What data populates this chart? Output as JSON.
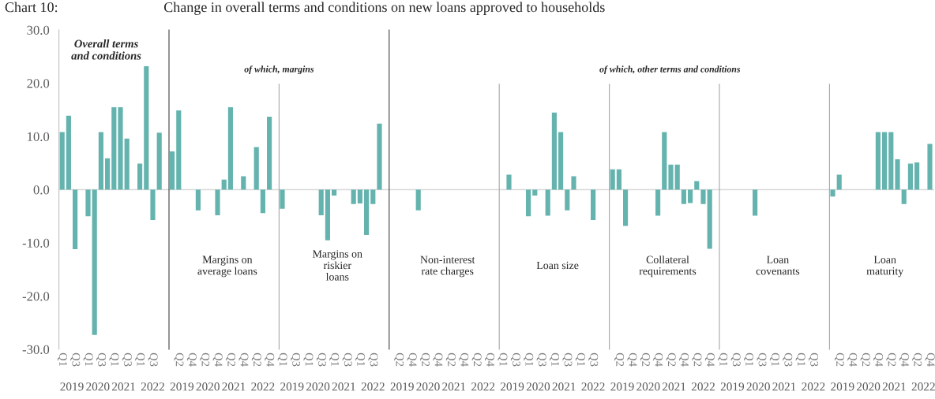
{
  "chart_data": [
    {
      "type": "bar",
      "title": "Overall terms\nand conditions",
      "categories": [
        "Q1",
        null,
        "Q3",
        null,
        "Q1",
        null,
        "Q3",
        null,
        "Q1",
        null,
        "Q3",
        null,
        "Q1",
        null,
        "Q3",
        null
      ],
      "values": [
        10.8,
        13.9,
        -11.2,
        null,
        -5.0,
        -27.3,
        10.8,
        5.9,
        15.5,
        15.5,
        9.6,
        null,
        4.9,
        23.2,
        -5.7,
        10.7
      ],
      "color": "#64b3ae",
      "ylim": [
        -30,
        30
      ],
      "yticks": [
        {
          "value": -30,
          "label": "-30.0"
        },
        {
          "value": -20,
          "label": "-20.0"
        },
        {
          "value": -10,
          "label": "-10.0"
        },
        {
          "value": 0,
          "label": "0.0"
        },
        {
          "value": 10,
          "label": "10.0"
        },
        {
          "value": 20,
          "label": "20.0"
        },
        {
          "value": 30,
          "label": "30.0"
        }
      ],
      "ref_lines": [
        {
          "axis": "y",
          "value": 0,
          "color": "#d9d9d9"
        }
      ],
      "annotations": [
        "Chart 10:",
        "Change in overall terms and conditions on new loans approved to households",
        "2019",
        "2020",
        "2021",
        "2022"
      ]
    },
    {
      "type": "bar",
      "title": "Margins on\naverage loans",
      "subtitle": "of which, margins",
      "categories": [
        null,
        "Q2",
        null,
        "Q4",
        null,
        "Q2",
        null,
        "Q4",
        null,
        "Q2",
        null,
        "Q4",
        null,
        "Q2",
        null,
        "Q4"
      ],
      "values": [
        7.2,
        14.9,
        null,
        null,
        -3.9,
        null,
        null,
        -4.8,
        1.9,
        15.5,
        null,
        2.5,
        null,
        8.0,
        -4.4,
        13.7
      ],
      "color": "#64b3ae",
      "ylim": [
        -30,
        30
      ],
      "tick_labels": "x",
      "ref_lines": [
        {
          "axis": "y",
          "value": 0,
          "color": "#d9d9d9"
        }
      ],
      "annotations": [
        "2019",
        "2020",
        "2021",
        "2022"
      ]
    },
    {
      "type": "bar",
      "title": "Margins on\nriskier\nloans",
      "categories": [
        "Q1",
        null,
        "Q3",
        null,
        "Q1",
        null,
        "Q3",
        null,
        "Q1",
        null,
        "Q3",
        null,
        "Q1",
        null,
        "Q3",
        null
      ],
      "values": [
        -3.6,
        null,
        null,
        null,
        null,
        null,
        -4.8,
        -9.5,
        -1.1,
        null,
        null,
        -2.7,
        -2.6,
        -8.5,
        -2.7,
        12.4
      ],
      "color": "#64b3ae",
      "ylim": [
        -30,
        30
      ],
      "tick_labels": "x",
      "ref_lines": [
        {
          "axis": "y",
          "value": 0,
          "color": "#d9d9d9"
        }
      ],
      "annotations": [
        "2019",
        "2020",
        "2021",
        "2022"
      ]
    },
    {
      "type": "bar",
      "title": "Non-interest\nrate charges",
      "categories": [
        null,
        "Q2",
        null,
        "Q4",
        null,
        "Q2",
        null,
        "Q4",
        null,
        "Q2",
        null,
        "Q4",
        null,
        "Q2",
        null,
        "Q4"
      ],
      "values": [
        null,
        null,
        null,
        null,
        -3.9,
        null,
        null,
        null,
        null,
        null,
        null,
        null,
        null,
        null,
        null,
        null
      ],
      "color": "#64b3ae",
      "ylim": [
        -30,
        30
      ],
      "tick_labels": "x",
      "ref_lines": [
        {
          "axis": "y",
          "value": 0,
          "color": "#d9d9d9"
        }
      ],
      "annotations": [
        "2019",
        "2020",
        "2021",
        "2022"
      ]
    },
    {
      "type": "bar",
      "title": "Loan size",
      "categories": [
        "Q1",
        null,
        "Q3",
        null,
        "Q1",
        null,
        "Q3",
        null,
        "Q1",
        null,
        "Q3",
        null,
        "Q1",
        null,
        "Q3",
        null
      ],
      "values": [
        null,
        2.8,
        null,
        null,
        -5.0,
        -1.1,
        null,
        -4.9,
        14.5,
        10.8,
        -3.9,
        2.5,
        null,
        null,
        -5.7,
        null
      ],
      "color": "#64b3ae",
      "ylim": [
        -30,
        30
      ],
      "tick_labels": "x",
      "ref_lines": [
        {
          "axis": "y",
          "value": 0,
          "color": "#d9d9d9"
        }
      ],
      "annotations": [
        "2019",
        "2020",
        "2021",
        "2022"
      ]
    },
    {
      "type": "bar",
      "title": "Collateral\nrequirements",
      "subtitle": "of which, other terms and conditions",
      "categories": [
        null,
        "Q2",
        null,
        "Q4",
        null,
        "Q2",
        null,
        "Q4",
        null,
        "Q2",
        null,
        "Q4",
        null,
        "Q2",
        null,
        "Q4"
      ],
      "values": [
        3.8,
        3.8,
        -6.8,
        null,
        null,
        null,
        null,
        -4.9,
        10.8,
        4.7,
        4.7,
        -2.7,
        -2.5,
        1.6,
        -2.7,
        -11.1
      ],
      "color": "#64b3ae",
      "ylim": [
        -30,
        30
      ],
      "tick_labels": "x",
      "ref_lines": [
        {
          "axis": "y",
          "value": 0,
          "color": "#d9d9d9"
        }
      ],
      "annotations": [
        "2019",
        "2020",
        "2021",
        "2022"
      ]
    },
    {
      "type": "bar",
      "title": "Loan\ncovenants",
      "categories": [
        "Q1",
        null,
        "Q3",
        null,
        "Q1",
        null,
        "Q3",
        null,
        "Q1",
        null,
        "Q3",
        null,
        "Q1",
        null,
        "Q3",
        null
      ],
      "values": [
        null,
        null,
        null,
        null,
        null,
        -4.9,
        null,
        null,
        null,
        null,
        null,
        null,
        null,
        null,
        null,
        null
      ],
      "color": "#64b3ae",
      "ylim": [
        -30,
        30
      ],
      "tick_labels": "x",
      "ref_lines": [
        {
          "axis": "y",
          "value": 0,
          "color": "#d9d9d9"
        }
      ],
      "annotations": [
        "2019",
        "2020",
        "2021",
        "2022"
      ]
    },
    {
      "type": "bar",
      "title": "Loan\nmaturity",
      "categories": [
        null,
        "Q2",
        null,
        "Q4",
        null,
        "Q2",
        null,
        "Q4",
        null,
        "Q2",
        null,
        "Q4",
        null,
        "Q2",
        null,
        "Q4"
      ],
      "values": [
        -1.3,
        2.8,
        null,
        null,
        null,
        null,
        null,
        10.8,
        10.8,
        10.8,
        5.7,
        -2.7,
        4.9,
        5.1,
        null,
        8.6
      ],
      "color": "#64b3ae",
      "ylim": [
        -30,
        30
      ],
      "tick_labels": "x",
      "ref_lines": [
        {
          "axis": "y",
          "value": 0,
          "color": "#d9d9d9"
        }
      ],
      "annotations": [
        "2019",
        "2020",
        "2021",
        "2022"
      ]
    }
  ]
}
